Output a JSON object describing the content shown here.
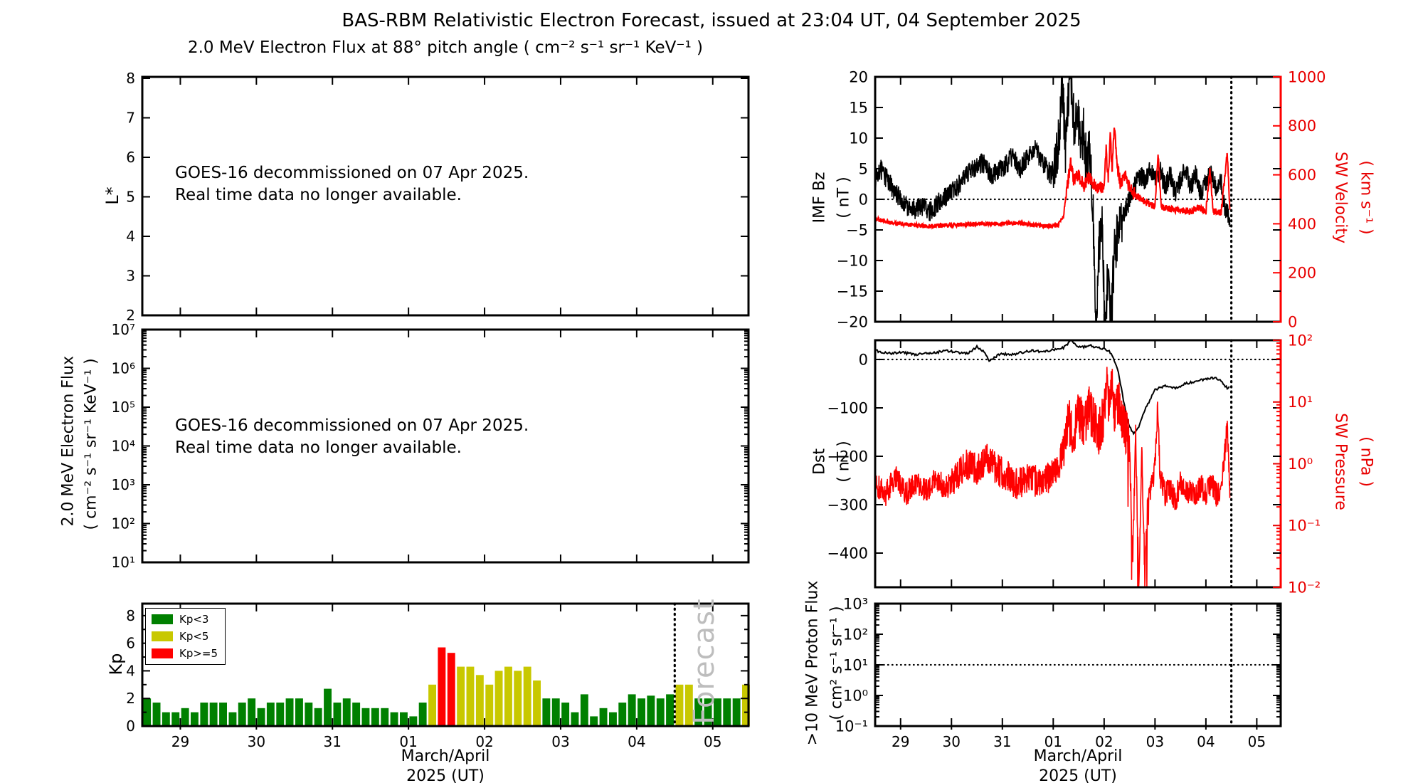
{
  "header": {
    "title": "BAS-RBM Relativistic Electron Forecast, issued at 23:04 UT, 04 September 2025"
  },
  "left_column": {
    "subtitle": "2.0 MeV Electron Flux at 88° pitch angle ( cm⁻² s⁻¹ sr⁻¹ KeV⁻¹ )",
    "lstar": {
      "ylabel": "L*",
      "annotation1": "GOES-16 decommissioned on 07 Apr 2025.",
      "annotation2": "Real time data no longer available."
    },
    "eflux": {
      "ylabel1": "2.0 MeV Electron Flux",
      "ylabel2": "( cm⁻² s⁻¹ sr⁻¹ KeV⁻¹ )",
      "annotation1": "GOES-16 decommissioned on 07 Apr 2025.",
      "annotation2": "Real time data no longer available."
    },
    "kp": {
      "ylabel": "Kp",
      "legend": [
        {
          "label": "Kp<3",
          "color": "#008000"
        },
        {
          "label": "Kp<5",
          "color": "#c8c800"
        },
        {
          "label": "Kp>=5",
          "color": "#ff0000"
        }
      ],
      "watermark": "Forecast",
      "xlabel1": "March/April",
      "xlabel2": "2025 (UT)"
    }
  },
  "right_column": {
    "imf": {
      "ylabel1": "IMF Bz",
      "ylabel2": "( nT )",
      "right_ylabel1": "SW Velocity",
      "right_ylabel2": "( km s⁻¹ )"
    },
    "dst": {
      "ylabel1": "Dst",
      "ylabel2": "( nT )",
      "right_ylabel1": "SW Pressure",
      "right_ylabel2": "( nPa )"
    },
    "proton": {
      "ylabel1": ">10 MeV Proton Flux",
      "ylabel2": "( cm² s⁻¹ sr⁻¹ )",
      "xlabel1": "March/April",
      "xlabel2": "2025 (UT)"
    }
  },
  "chart_data": {
    "x_domain": [
      28.5,
      36.47
    ],
    "x_ticks": {
      "values": [
        29,
        30,
        31,
        32,
        33,
        34,
        35,
        36
      ],
      "labels": [
        "29",
        "30",
        "31",
        "01",
        "02",
        "03",
        "04",
        "05"
      ]
    },
    "forecast_start_day": 35.5,
    "lstar": {
      "type": "empty",
      "ylim": [
        2,
        8.036
      ],
      "yticks": [
        8,
        7,
        6,
        5,
        4,
        3,
        2
      ]
    },
    "eflux": {
      "type": "empty",
      "log": true,
      "ylim_exp": [
        1,
        7
      ],
      "ytick_exps": [
        7,
        6,
        5,
        4,
        3,
        2,
        1
      ]
    },
    "kp": {
      "type": "bar",
      "start_day": 28.5,
      "bin_days": 0.125,
      "ylim": [
        0,
        8.87
      ],
      "yticks": [
        0,
        2,
        4,
        6,
        8
      ],
      "color_rules": {
        "lt3": "#008000",
        "lt5": "#c8c800",
        "ge5": "#ff0000"
      },
      "values": [
        2.0,
        1.7,
        1.0,
        1.0,
        1.3,
        1.0,
        1.7,
        1.7,
        1.7,
        1.0,
        1.7,
        2.0,
        1.3,
        1.7,
        1.7,
        2.0,
        2.0,
        1.7,
        1.3,
        2.7,
        1.7,
        2.0,
        1.7,
        1.3,
        1.3,
        1.3,
        1.0,
        1.0,
        0.7,
        1.7,
        3.0,
        5.7,
        5.3,
        4.3,
        4.3,
        3.7,
        3.0,
        4.0,
        4.3,
        4.0,
        4.3,
        3.3,
        2.0,
        2.0,
        1.7,
        1.0,
        2.3,
        0.7,
        1.3,
        1.0,
        1.7,
        2.3,
        2.0,
        2.2,
        2.0,
        2.3,
        3.0,
        3.0,
        2.0,
        2.0,
        2.0,
        2.0,
        2.0,
        3.0
      ]
    },
    "imf": {
      "type": "line",
      "ylim": [
        -20,
        20
      ],
      "yticks": [
        20,
        15,
        10,
        5,
        0,
        -5,
        -10,
        -15,
        -20
      ],
      "hline": 0,
      "right": {
        "ylim": [
          0,
          1000
        ],
        "yticks": [
          1000,
          800,
          600,
          400,
          200,
          0
        ]
      },
      "series": [
        {
          "name": "IMF Bz",
          "color": "#000000",
          "axis": "left",
          "keypoints": [
            [
              28.5,
              3
            ],
            [
              28.6,
              5
            ],
            [
              28.75,
              3
            ],
            [
              29.0,
              0
            ],
            [
              29.2,
              -2
            ],
            [
              29.4,
              -1
            ],
            [
              29.6,
              -2
            ],
            [
              29.8,
              0
            ],
            [
              30.0,
              1
            ],
            [
              30.2,
              3
            ],
            [
              30.4,
              5
            ],
            [
              30.6,
              6
            ],
            [
              30.8,
              4
            ],
            [
              31.0,
              5
            ],
            [
              31.2,
              7
            ],
            [
              31.35,
              5
            ],
            [
              31.5,
              7
            ],
            [
              31.65,
              8
            ],
            [
              31.8,
              6
            ],
            [
              31.95,
              4
            ],
            [
              32.05,
              6
            ],
            [
              32.12,
              10
            ],
            [
              32.18,
              19
            ],
            [
              32.24,
              8
            ],
            [
              32.3,
              17
            ],
            [
              32.36,
              20
            ],
            [
              32.42,
              10
            ],
            [
              32.48,
              16
            ],
            [
              32.54,
              6
            ],
            [
              32.6,
              12
            ],
            [
              32.66,
              4
            ],
            [
              32.72,
              9
            ],
            [
              32.78,
              -2
            ],
            [
              32.84,
              -21
            ],
            [
              32.9,
              -8
            ],
            [
              32.96,
              -4
            ],
            [
              33.02,
              -23
            ],
            [
              33.08,
              -10
            ],
            [
              33.14,
              -21
            ],
            [
              33.2,
              -8
            ],
            [
              33.3,
              -5
            ],
            [
              33.4,
              -2
            ],
            [
              33.5,
              0
            ],
            [
              33.6,
              2
            ],
            [
              33.7,
              4
            ],
            [
              33.8,
              3
            ],
            [
              33.9,
              5
            ],
            [
              34.0,
              3
            ],
            [
              34.1,
              5
            ],
            [
              34.2,
              2
            ],
            [
              34.3,
              4
            ],
            [
              34.4,
              1
            ],
            [
              34.5,
              3
            ],
            [
              34.6,
              5
            ],
            [
              34.7,
              2
            ],
            [
              34.8,
              4
            ],
            [
              34.9,
              1
            ],
            [
              35.0,
              3
            ],
            [
              35.1,
              4
            ],
            [
              35.2,
              2
            ],
            [
              35.3,
              3
            ],
            [
              35.38,
              -2
            ],
            [
              35.47,
              -3
            ]
          ]
        },
        {
          "name": "SW Velocity",
          "color": "#ff0000",
          "axis": "right",
          "keypoints": [
            [
              28.5,
              420
            ],
            [
              28.8,
              405
            ],
            [
              29.0,
              400
            ],
            [
              29.5,
              390
            ],
            [
              30.0,
              395
            ],
            [
              30.5,
              400
            ],
            [
              31.0,
              400
            ],
            [
              31.3,
              405
            ],
            [
              31.6,
              395
            ],
            [
              31.9,
              390
            ],
            [
              32.1,
              395
            ],
            [
              32.2,
              430
            ],
            [
              32.28,
              560
            ],
            [
              32.34,
              650
            ],
            [
              32.4,
              580
            ],
            [
              32.5,
              600
            ],
            [
              32.6,
              555
            ],
            [
              32.7,
              590
            ],
            [
              32.8,
              560
            ],
            [
              32.9,
              540
            ],
            [
              33.0,
              560
            ],
            [
              33.04,
              700
            ],
            [
              33.08,
              580
            ],
            [
              33.12,
              750
            ],
            [
              33.16,
              620
            ],
            [
              33.2,
              810
            ],
            [
              33.26,
              640
            ],
            [
              33.32,
              560
            ],
            [
              33.4,
              600
            ],
            [
              33.5,
              545
            ],
            [
              33.6,
              520
            ],
            [
              33.7,
              505
            ],
            [
              33.8,
              490
            ],
            [
              33.9,
              480
            ],
            [
              34.0,
              470
            ],
            [
              34.06,
              690
            ],
            [
              34.12,
              470
            ],
            [
              34.3,
              460
            ],
            [
              34.5,
              455
            ],
            [
              34.7,
              450
            ],
            [
              34.85,
              465
            ],
            [
              35.0,
              450
            ],
            [
              35.08,
              620
            ],
            [
              35.14,
              450
            ],
            [
              35.3,
              448
            ],
            [
              35.42,
              690
            ],
            [
              35.47,
              455
            ]
          ]
        }
      ]
    },
    "dst": {
      "type": "line",
      "ylim": [
        -470.6,
        39.7
      ],
      "yticks": [
        0,
        -100,
        -200,
        -300,
        -400
      ],
      "hline": 0,
      "right": {
        "log": true,
        "ylim_exp": [
          -2,
          2
        ],
        "ytick_exps": [
          2,
          1,
          0,
          -1,
          -2
        ]
      },
      "series": [
        {
          "name": "Dst",
          "color": "#000000",
          "axis": "left",
          "keypoints": [
            [
              28.5,
              18
            ],
            [
              28.8,
              12
            ],
            [
              29.0,
              15
            ],
            [
              29.3,
              10
            ],
            [
              29.6,
              13
            ],
            [
              29.9,
              18
            ],
            [
              30.1,
              15
            ],
            [
              30.3,
              12
            ],
            [
              30.5,
              26
            ],
            [
              30.62,
              18
            ],
            [
              30.75,
              -4
            ],
            [
              30.9,
              8
            ],
            [
              31.0,
              12
            ],
            [
              31.2,
              10
            ],
            [
              31.4,
              15
            ],
            [
              31.6,
              18
            ],
            [
              31.8,
              15
            ],
            [
              32.0,
              20
            ],
            [
              32.2,
              24
            ],
            [
              32.35,
              40
            ],
            [
              32.45,
              28
            ],
            [
              32.6,
              25
            ],
            [
              32.7,
              30
            ],
            [
              32.8,
              26
            ],
            [
              33.0,
              22
            ],
            [
              33.1,
              16
            ],
            [
              33.18,
              4
            ],
            [
              33.28,
              -25
            ],
            [
              33.38,
              -85
            ],
            [
              33.48,
              -135
            ],
            [
              33.58,
              -155
            ],
            [
              33.68,
              -138
            ],
            [
              33.78,
              -108
            ],
            [
              33.88,
              -88
            ],
            [
              34.0,
              -62
            ],
            [
              34.2,
              -55
            ],
            [
              34.4,
              -60
            ],
            [
              34.6,
              -50
            ],
            [
              34.8,
              -45
            ],
            [
              35.0,
              -40
            ],
            [
              35.15,
              -38
            ],
            [
              35.3,
              -44
            ],
            [
              35.42,
              -60
            ],
            [
              35.47,
              -56
            ]
          ]
        },
        {
          "name": "SW Pressure",
          "color": "#ff0000",
          "axis": "right_log",
          "keypoints": [
            [
              28.5,
              -0.3
            ],
            [
              28.7,
              -0.5
            ],
            [
              28.9,
              -0.2
            ],
            [
              29.1,
              -0.5
            ],
            [
              29.3,
              -0.3
            ],
            [
              29.5,
              -0.45
            ],
            [
              29.7,
              -0.25
            ],
            [
              29.9,
              -0.4
            ],
            [
              30.1,
              -0.2
            ],
            [
              30.3,
              0.0
            ],
            [
              30.5,
              -0.1
            ],
            [
              30.7,
              0.1
            ],
            [
              30.9,
              -0.1
            ],
            [
              31.1,
              -0.2
            ],
            [
              31.3,
              -0.35
            ],
            [
              31.5,
              -0.2
            ],
            [
              31.7,
              -0.3
            ],
            [
              31.9,
              -0.25
            ],
            [
              32.1,
              -0.1
            ],
            [
              32.2,
              0.3
            ],
            [
              32.3,
              0.7
            ],
            [
              32.4,
              0.5
            ],
            [
              32.5,
              0.8
            ],
            [
              32.6,
              0.6
            ],
            [
              32.7,
              0.9
            ],
            [
              32.8,
              0.7
            ],
            [
              32.9,
              0.5
            ],
            [
              33.0,
              0.8
            ],
            [
              33.05,
              1.3
            ],
            [
              33.1,
              0.9
            ],
            [
              33.15,
              1.25
            ],
            [
              33.2,
              0.85
            ],
            [
              33.3,
              1.0
            ],
            [
              33.4,
              0.6
            ],
            [
              33.5,
              0.3
            ],
            [
              33.56,
              -1.6
            ],
            [
              33.62,
              0.5
            ],
            [
              33.68,
              -2
            ],
            [
              33.74,
              0.2
            ],
            [
              33.8,
              -1.8
            ],
            [
              33.86,
              -0.5
            ],
            [
              33.95,
              -0.3
            ],
            [
              34.0,
              0.0
            ],
            [
              34.05,
              0.9
            ],
            [
              34.1,
              -0.2
            ],
            [
              34.2,
              -0.5
            ],
            [
              34.3,
              -0.4
            ],
            [
              34.4,
              -0.6
            ],
            [
              34.5,
              -0.3
            ],
            [
              34.6,
              -0.5
            ],
            [
              34.7,
              -0.4
            ],
            [
              34.8,
              -0.55
            ],
            [
              34.9,
              -0.35
            ],
            [
              35.0,
              -0.5
            ],
            [
              35.1,
              -0.3
            ],
            [
              35.2,
              -0.5
            ],
            [
              35.3,
              -0.4
            ],
            [
              35.42,
              0.6
            ],
            [
              35.47,
              -0.45
            ]
          ]
        }
      ]
    },
    "proton": {
      "type": "line",
      "log": true,
      "ylim_exp": [
        -1,
        3
      ],
      "ytick_exps": [
        3,
        2,
        1,
        0,
        -1
      ],
      "hline_exp": 1,
      "series": []
    }
  }
}
